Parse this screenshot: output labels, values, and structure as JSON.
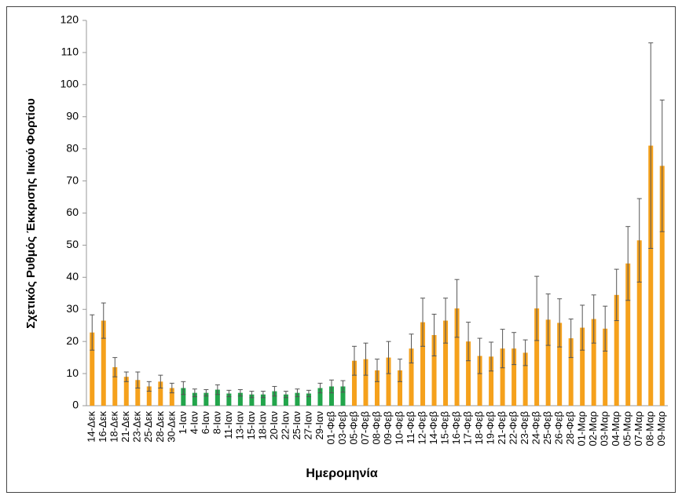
{
  "chart_data": {
    "type": "bar",
    "x_label": "Ημερομηνία",
    "y_label": "Σχετικός Ρυθμός Έκκρισης Ιικού Φορτίου",
    "categories": [
      "14-Δεκ",
      "16-Δεκ",
      "18-Δεκ",
      "21-Δεκ",
      "23-Δεκ",
      "25-Δεκ",
      "28-Δεκ",
      "30-Δεκ",
      "1-Ιαν",
      "4-Ιαν",
      "6-Ιαν",
      "8-Ιαν",
      "11-Ιαν",
      "13-Ιαν",
      "15-Ιαν",
      "18-Ιαν",
      "20-Ιαν",
      "22-Ιαν",
      "25-Ιαν",
      "27-Ιαν",
      "29-Ιαν",
      "01-Φεβ",
      "03-Φεβ",
      "05-Φεβ",
      "07-Φεβ",
      "08-Φεβ",
      "09-Φεβ",
      "10-Φεβ",
      "11-Φεβ",
      "12-Φεβ",
      "14-Φεβ",
      "15-Φεβ",
      "16-Φεβ",
      "17-Φεβ",
      "18-Φεβ",
      "19-Φεβ",
      "21-Φεβ",
      "22-Φεβ",
      "23-Φεβ",
      "24-Φεβ",
      "25-Φεβ",
      "26-Φεβ",
      "28-Φεβ",
      "01-Μαρ",
      "02-Μαρ",
      "03-Μαρ",
      "04-Μαρ",
      "05-Μαρ",
      "07-Μαρ",
      "08-Μαρ",
      "09-Μαρ"
    ],
    "values": [
      22.8,
      26.5,
      12,
      9,
      8,
      6,
      7.5,
      5.5,
      5.5,
      4,
      4,
      5,
      3.8,
      4,
      3.5,
      3.5,
      4.5,
      3.5,
      4,
      3.8,
      5.5,
      6,
      6,
      14,
      14.5,
      11,
      15,
      11,
      17.8,
      26,
      22,
      26.5,
      30.3,
      20,
      15.5,
      15.3,
      17.8,
      17.8,
      16.5,
      30.3,
      26.8,
      25.8,
      21,
      24.3,
      27,
      24,
      34.5,
      44.3,
      51.5,
      81,
      74.7
    ],
    "errors": [
      5.5,
      5.5,
      3,
      1.5,
      2.5,
      1.5,
      2,
      1.5,
      2,
      1.2,
      1,
      1.5,
      1,
      1,
      1,
      1,
      1.5,
      1,
      1.2,
      1,
      1.5,
      2,
      1.8,
      4.5,
      5,
      3.5,
      5,
      3.5,
      4.5,
      7.5,
      6.5,
      7,
      9,
      6,
      5.5,
      4.5,
      6,
      5,
      4,
      10,
      8,
      7.5,
      6,
      7,
      7.5,
      7,
      8,
      11.5,
      13,
      32,
      20.5
    ],
    "colors": [
      "#f5a11c",
      "#f5a11c",
      "#f5a11c",
      "#f5a11c",
      "#f5a11c",
      "#f5a11c",
      "#f5a11c",
      "#f5a11c",
      "#22a54b",
      "#22a54b",
      "#22a54b",
      "#22a54b",
      "#22a54b",
      "#22a54b",
      "#22a54b",
      "#22a54b",
      "#22a54b",
      "#22a54b",
      "#22a54b",
      "#22a54b",
      "#22a54b",
      "#22a54b",
      "#22a54b",
      "#f5a11c",
      "#f5a11c",
      "#f5a11c",
      "#f5a11c",
      "#f5a11c",
      "#f5a11c",
      "#f5a11c",
      "#f5a11c",
      "#f5a11c",
      "#f5a11c",
      "#f5a11c",
      "#f5a11c",
      "#f5a11c",
      "#f5a11c",
      "#f5a11c",
      "#f5a11c",
      "#f5a11c",
      "#f5a11c",
      "#f5a11c",
      "#f5a11c",
      "#f5a11c",
      "#f5a11c",
      "#f5a11c",
      "#f5a11c",
      "#f5a11c",
      "#f5a11c",
      "#f5a11c",
      "#f5a11c"
    ],
    "ylim": [
      0,
      120
    ],
    "yticks": [
      0,
      10,
      20,
      30,
      40,
      50,
      60,
      70,
      80,
      90,
      100,
      110,
      120
    ],
    "grid": false
  }
}
